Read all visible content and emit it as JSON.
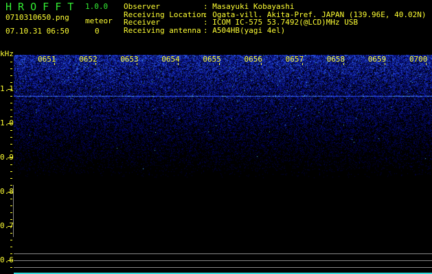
{
  "app": {
    "name": "H R O F F T",
    "version": "1.0.0"
  },
  "file": {
    "name": "0710310650.png",
    "datetime": "07.10.31 06:50"
  },
  "meteor": {
    "label": "meteor",
    "count": "0"
  },
  "info": [
    {
      "label": "Observer",
      "value": ": Masayuki Kobayashi"
    },
    {
      "label": "Receiving Location",
      "value": ": Ogata-vill. Akita-Pref. JAPAN (139.96E, 40.02N)"
    },
    {
      "label": "Receiver",
      "value": ": ICOM IC-575 53.7492(@LCD)MHz USB"
    },
    {
      "label": "Receiving antenna",
      "value": ": A504HB(yagi 4el)"
    }
  ],
  "axis": {
    "unit": "kHz",
    "y_labels": [
      "1.1",
      "1.0",
      "0.9",
      "0.8",
      "0.7",
      "0.6"
    ],
    "x_labels": [
      "0651",
      "0652",
      "0653",
      "0654",
      "0655",
      "0656",
      "0657",
      "0658",
      "0659",
      "0700"
    ]
  },
  "colors": {
    "text": "#ffff33",
    "title": "#33ee33",
    "signal": "#2233ff",
    "carrier": "#4488ff"
  }
}
